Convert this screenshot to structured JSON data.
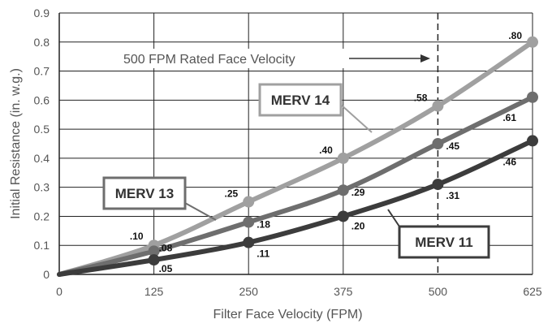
{
  "chart_data": {
    "type": "line",
    "xlabel": "Filter Face Velocity (FPM)",
    "ylabel": "Initial Resistance (in. w.g.)",
    "xlim": [
      0,
      625
    ],
    "ylim": [
      0,
      0.9
    ],
    "x_ticks": [
      "0",
      "125",
      "250",
      "375",
      "500",
      "625"
    ],
    "y_ticks": [
      "0",
      "0.1",
      "0.2",
      "0.3",
      "0.4",
      "0.5",
      "0.6",
      "0.7",
      "0.8",
      "0.9"
    ],
    "grid": true,
    "series": [
      {
        "name": "MERV 14",
        "color": "#a0a0a0",
        "x": [
          0,
          125,
          250,
          375,
          500,
          625
        ],
        "values": [
          0,
          0.1,
          0.25,
          0.4,
          0.58,
          0.8
        ],
        "labels": [
          "",
          ".10",
          ".25",
          ".40",
          ".58",
          ".80"
        ]
      },
      {
        "name": "MERV 13",
        "color": "#6e6e6e",
        "x": [
          0,
          125,
          250,
          375,
          500,
          625
        ],
        "values": [
          0,
          0.08,
          0.18,
          0.29,
          0.45,
          0.61
        ],
        "labels": [
          "",
          ".08",
          ".18",
          ".29",
          ".45",
          ".61"
        ]
      },
      {
        "name": "MERV 11",
        "color": "#3c3c3c",
        "x": [
          0,
          125,
          250,
          375,
          500,
          625
        ],
        "values": [
          0,
          0.05,
          0.11,
          0.2,
          0.31,
          0.46
        ],
        "labels": [
          "",
          ".05",
          ".11",
          ".20",
          ".31",
          ".46"
        ]
      }
    ],
    "annotations": {
      "rated_velocity_x": 500,
      "rated_velocity_text": "500 FPM Rated Face Velocity"
    }
  }
}
